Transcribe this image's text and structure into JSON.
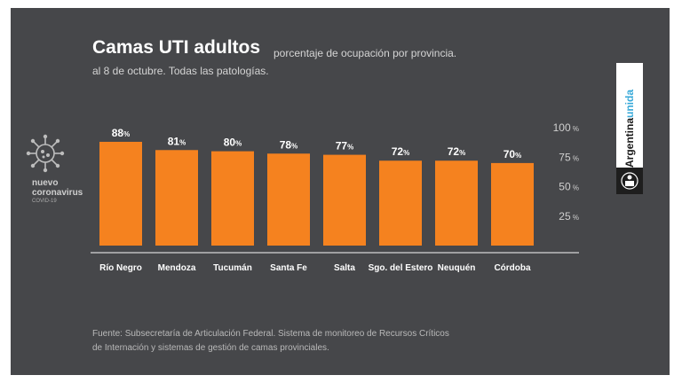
{
  "header": {
    "title": "Camas UTI adultos",
    "subtitle": "porcentaje de ocupación por provincia.",
    "subtitle2": "al 8 de octubre. Todas las patologías."
  },
  "badge": {
    "line1": "nuevo",
    "line2": "coronavirus",
    "line3": "COVID-19"
  },
  "logo": {
    "part1": "Argentina",
    "part2": "unida"
  },
  "source": {
    "line1": "Fuente: Subsecretaría de Articulación Federal. Sistema de monitoreo de Recursos Críticos",
    "line2": "de Internación  y sistemas de gestión de camas provinciales."
  },
  "colors": {
    "background": "#46474a",
    "bar": "#f5821f",
    "text": "#ffffff",
    "axis": "#d6d6d6"
  },
  "chart_data": {
    "type": "bar",
    "title": "Camas UTI adultos",
    "categories": [
      "Río Negro",
      "Mendoza",
      "Tucumán",
      "Santa Fe",
      "Salta",
      "Sgo. del Estero",
      "Neuquén",
      "Córdoba"
    ],
    "values": [
      88,
      81,
      80,
      78,
      77,
      72,
      72,
      70
    ],
    "value_suffix": "%",
    "yticks": [
      25,
      50,
      75,
      100
    ],
    "ytick_suffix": " %",
    "ylim": [
      0,
      100
    ],
    "yaxis_side": "right",
    "grid": false,
    "legend": "none"
  }
}
